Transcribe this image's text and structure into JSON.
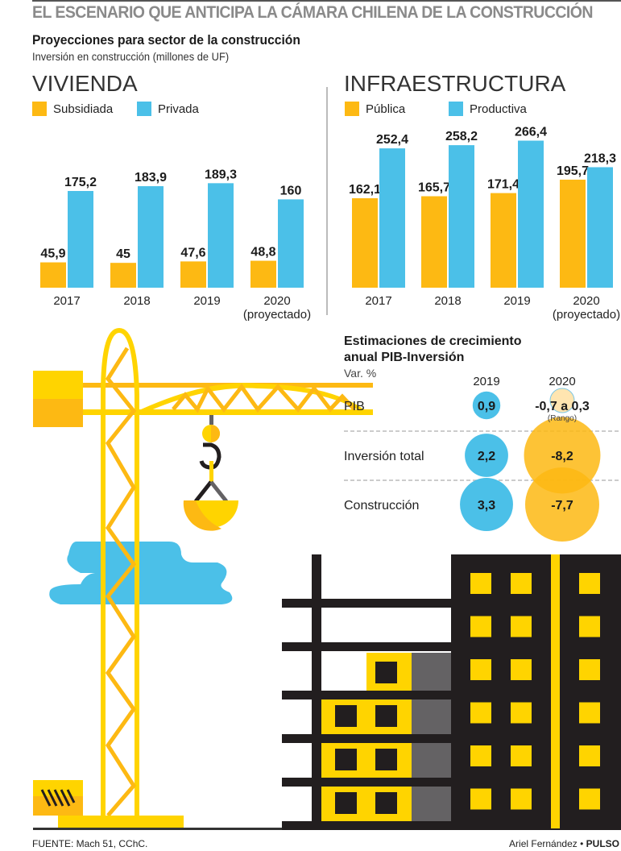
{
  "header": {
    "main_title": "EL ESCENARIO QUE ANTICIPA LA CÁMARA CHILENA DE LA CONSTRUCCIÓN",
    "subtitle": "Proyecciones para sector de la construcción",
    "caption": "Inversión en construcción (millones de UF)"
  },
  "colors": {
    "orange": "#FDB913",
    "blue": "#4BC0E8",
    "yellow": "#FFD400",
    "dark": "#221E1F",
    "gray": "#646264",
    "title_gray": "#8A8A8A"
  },
  "chart_data": [
    {
      "type": "bar",
      "title": "VIVIENDA",
      "xlabel": "",
      "ylabel": "Inversión en construcción (millones de UF)",
      "categories": [
        "2017",
        "2018",
        "2019",
        "2020"
      ],
      "category_notes": [
        "",
        "",
        "",
        "(proyectado)"
      ],
      "series": [
        {
          "name": "Subsidiada",
          "color": "#FDB913",
          "values": [
            45.9,
            45,
            47.6,
            48.8
          ],
          "labels": [
            "45,9",
            "45",
            "47,6",
            "48,8"
          ]
        },
        {
          "name": "Privada",
          "color": "#4BC0E8",
          "values": [
            175.2,
            183.9,
            189.3,
            160
          ],
          "labels": [
            "175,2",
            "183,9",
            "189,3",
            "160"
          ]
        }
      ],
      "ylim": [
        0,
        300
      ],
      "grid": false,
      "legend": "top-left"
    },
    {
      "type": "bar",
      "title": "INFRAESTRUCTURA",
      "xlabel": "",
      "ylabel": "Inversión en construcción (millones de UF)",
      "categories": [
        "2017",
        "2018",
        "2019",
        "2020"
      ],
      "category_notes": [
        "",
        "",
        "",
        "(proyectado)"
      ],
      "series": [
        {
          "name": "Pública",
          "color": "#FDB913",
          "values": [
            162.1,
            165.7,
            171.4,
            195.7
          ],
          "labels": [
            "162,1",
            "165,7",
            "171,4",
            "195,7"
          ]
        },
        {
          "name": "Productiva",
          "color": "#4BC0E8",
          "values": [
            252.4,
            258.2,
            266.4,
            218.3
          ],
          "labels": [
            "252,4",
            "258,2",
            "266,4",
            "218,3"
          ]
        }
      ],
      "ylim": [
        0,
        300
      ],
      "grid": false,
      "legend": "top-left"
    },
    {
      "type": "bubble",
      "title": "Estimaciones de crecimiento anual PIB-Inversión",
      "unit": "Var. %",
      "columns": [
        "2019",
        "2020"
      ],
      "rows": [
        {
          "label": "PIB",
          "values": [
            0.9,
            null
          ],
          "labels": [
            "0,9",
            "-0,7 a 0,3"
          ],
          "note_2020": "(Rango)",
          "range_2020": [
            -0.7,
            0.3
          ]
        },
        {
          "label": "Inversión total",
          "values": [
            2.2,
            -8.2
          ],
          "labels": [
            "2,2",
            "-8,2"
          ]
        },
        {
          "label": "Construcción",
          "values": [
            3.3,
            -7.7
          ],
          "labels": [
            "3,3",
            "-7,7"
          ]
        }
      ]
    }
  ],
  "footer": {
    "source": "FUENTE: Mach 51, CChC.",
    "author": "Ariel Fernández",
    "separator": "•",
    "publication": "PULSO"
  }
}
